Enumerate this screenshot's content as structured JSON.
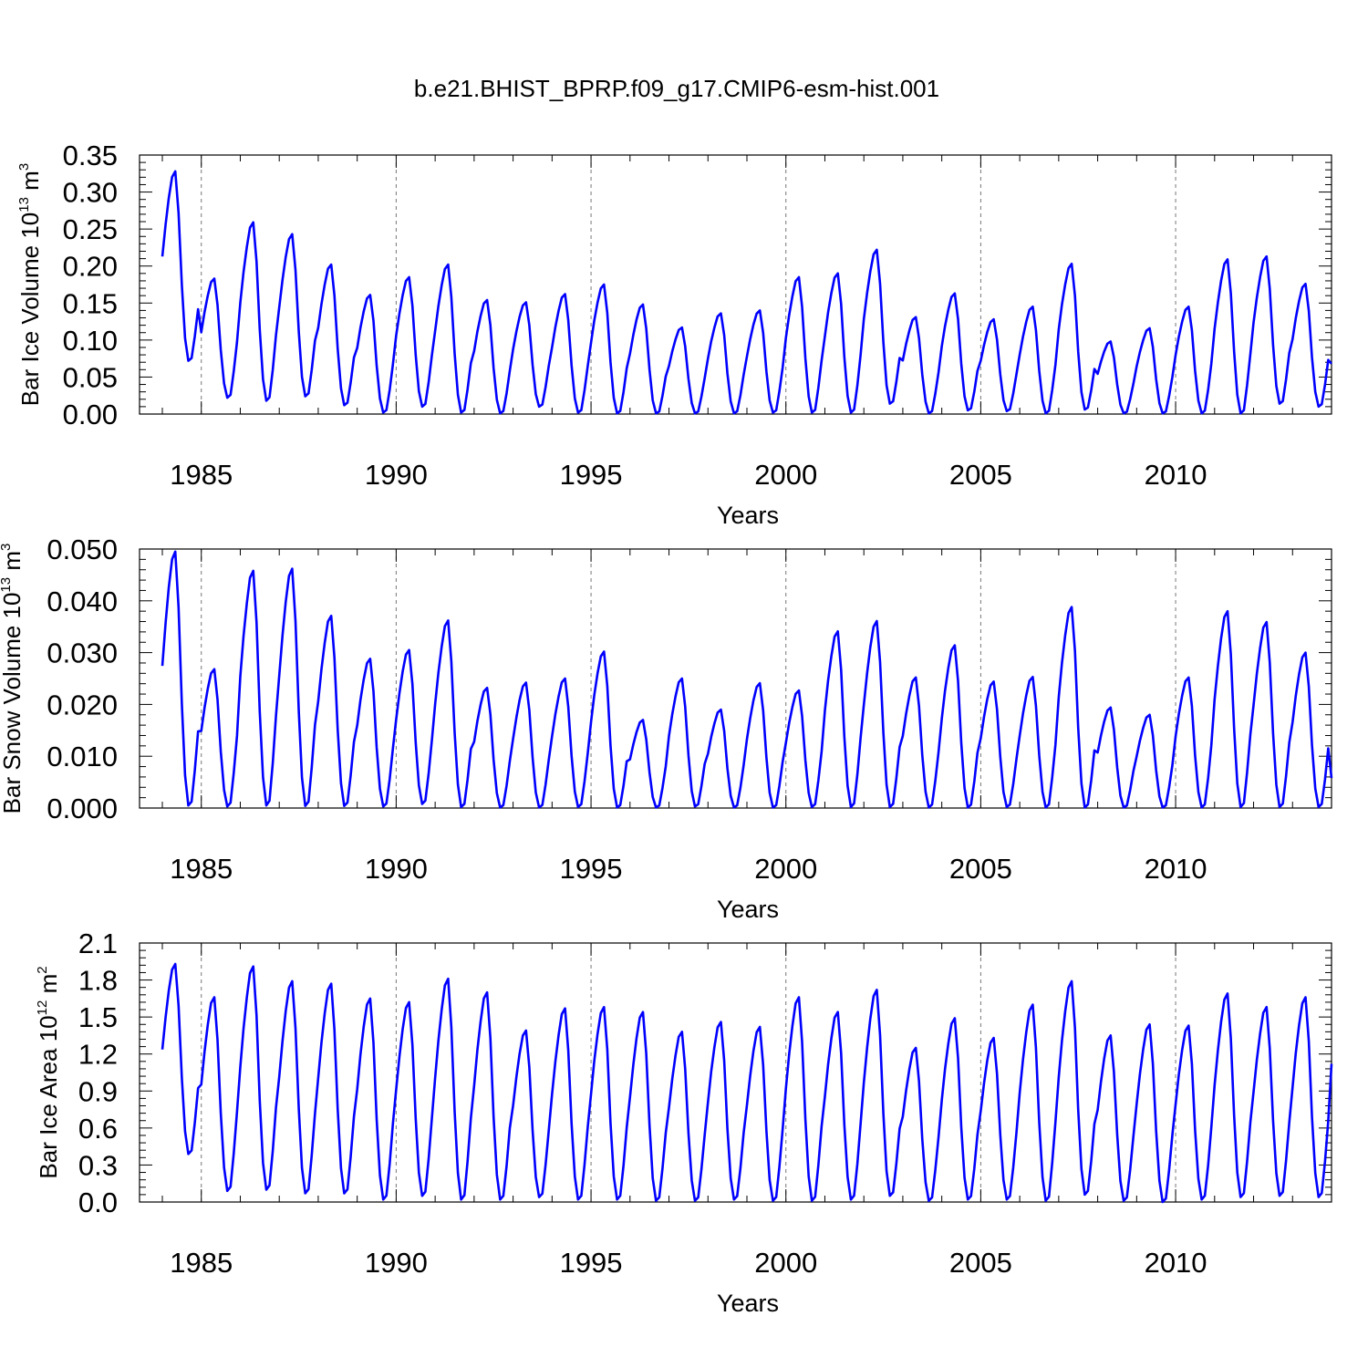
{
  "title": "b.e21.BHIST_BPRP.f09_g17.CMIP6-esm-hist.001",
  "colors": {
    "line": "#0000ff",
    "axis": "#000000",
    "grid": "#777777"
  },
  "chart_data": [
    {
      "type": "line",
      "ylabel": "Bar Ice Volume 10",
      "ylabel_sup": "13",
      "ylabel_unit": "m",
      "ylabel_unit_sup": "3",
      "xlabel": "Years",
      "xlim": [
        1984.0,
        2014.0
      ],
      "ylim": [
        0,
        0.35
      ],
      "yticks": [
        0.0,
        0.05,
        0.1,
        0.15,
        0.2,
        0.25,
        0.3,
        0.35
      ],
      "ytick_labels": [
        "0.00",
        "0.05",
        "0.10",
        "0.15",
        "0.20",
        "0.25",
        "0.30",
        "0.35"
      ],
      "xticks": [
        1985,
        1990,
        1995,
        2000,
        2005,
        2010
      ],
      "xtick_labels": [
        "1985",
        "1990",
        "1995",
        "2000",
        "2005",
        "2010"
      ],
      "peaks": [
        0.328,
        0.183,
        0.259,
        0.243,
        0.202,
        0.161,
        0.185,
        0.202,
        0.154,
        0.151,
        0.162,
        0.175,
        0.148,
        0.117,
        0.136,
        0.14,
        0.185,
        0.19,
        0.222,
        0.131,
        0.163,
        0.128,
        0.145,
        0.203,
        0.098,
        0.116,
        0.145,
        0.209,
        0.213,
        0.176
      ],
      "troughs": [
        0.072,
        0.022,
        0.018,
        0.024,
        0.012,
        0.002,
        0.01,
        0.002,
        0.001,
        0.01,
        0.002,
        0.001,
        0.001,
        0.001,
        0.001,
        0.002,
        0.002,
        0.002,
        0.014,
        0.001,
        0.005,
        0.004,
        0.001,
        0.006,
        0.001,
        0.001,
        0.001,
        0.001,
        0.014,
        0.01
      ],
      "end_value": 0.068
    },
    {
      "type": "line",
      "ylabel": "Bar Snow Volume 10",
      "ylabel_sup": "13",
      "ylabel_unit": "m",
      "ylabel_unit_sup": "3",
      "xlabel": "Years",
      "xlim": [
        1984.0,
        2014.0
      ],
      "ylim": [
        0,
        0.05
      ],
      "yticks": [
        0.0,
        0.01,
        0.02,
        0.03,
        0.04,
        0.05
      ],
      "ytick_labels": [
        "0.000",
        "0.010",
        "0.020",
        "0.030",
        "0.040",
        "0.050"
      ],
      "xticks": [
        1985,
        1990,
        1995,
        2000,
        2005,
        2010
      ],
      "xtick_labels": [
        "1985",
        "1990",
        "1995",
        "2000",
        "2005",
        "2010"
      ],
      "peaks": [
        0.0495,
        0.0268,
        0.0458,
        0.0462,
        0.0371,
        0.0288,
        0.0305,
        0.0362,
        0.0232,
        0.0242,
        0.025,
        0.0302,
        0.017,
        0.025,
        0.019,
        0.0241,
        0.0227,
        0.0341,
        0.0361,
        0.0252,
        0.0314,
        0.0244,
        0.0253,
        0.0388,
        0.0194,
        0.018,
        0.0252,
        0.038,
        0.0359,
        0.03
      ],
      "troughs": [
        0.0005,
        0.0003,
        0.0005,
        0.0004,
        0.0004,
        0.0003,
        0.0008,
        0.0002,
        0.0001,
        0.0001,
        0.0002,
        0.0001,
        0.0001,
        0.0003,
        0.0001,
        0.0001,
        0.0002,
        0.0002,
        0.0002,
        0.0001,
        0.0001,
        0.0002,
        0.0001,
        0.0001,
        0.0001,
        0.0001,
        0.0001,
        0.0002,
        0.0002,
        0.0002
      ],
      "end_value": 0.0058
    },
    {
      "type": "line",
      "ylabel": "Bar Ice Area 10",
      "ylabel_sup": "12",
      "ylabel_unit": "m",
      "ylabel_unit_sup": "2",
      "xlabel": "Years",
      "xlim": [
        1984.0,
        2014.0
      ],
      "ylim": [
        0,
        2.1
      ],
      "yticks": [
        0.0,
        0.3,
        0.6,
        0.9,
        1.2,
        1.5,
        1.8,
        2.1
      ],
      "ytick_labels": [
        "0.0",
        "0.3",
        "0.6",
        "0.9",
        "1.2",
        "1.5",
        "1.8",
        "2.1"
      ],
      "xticks": [
        1985,
        1990,
        1995,
        2000,
        2005,
        2010
      ],
      "xtick_labels": [
        "1985",
        "1990",
        "1995",
        "2000",
        "2005",
        "2010"
      ],
      "peaks": [
        1.93,
        1.66,
        1.91,
        1.79,
        1.77,
        1.65,
        1.62,
        1.81,
        1.7,
        1.39,
        1.57,
        1.58,
        1.54,
        1.38,
        1.46,
        1.42,
        1.66,
        1.54,
        1.72,
        1.25,
        1.49,
        1.33,
        1.6,
        1.79,
        1.35,
        1.44,
        1.43,
        1.69,
        1.58,
        1.66
      ],
      "troughs": [
        0.39,
        0.09,
        0.1,
        0.07,
        0.07,
        0.02,
        0.05,
        0.02,
        0.02,
        0.04,
        0.02,
        0.02,
        0.01,
        0.01,
        0.02,
        0.01,
        0.01,
        0.02,
        0.05,
        0.01,
        0.02,
        0.02,
        0.01,
        0.06,
        0.01,
        0.0,
        0.02,
        0.04,
        0.05,
        0.04
      ],
      "end_value": 1.12
    }
  ]
}
